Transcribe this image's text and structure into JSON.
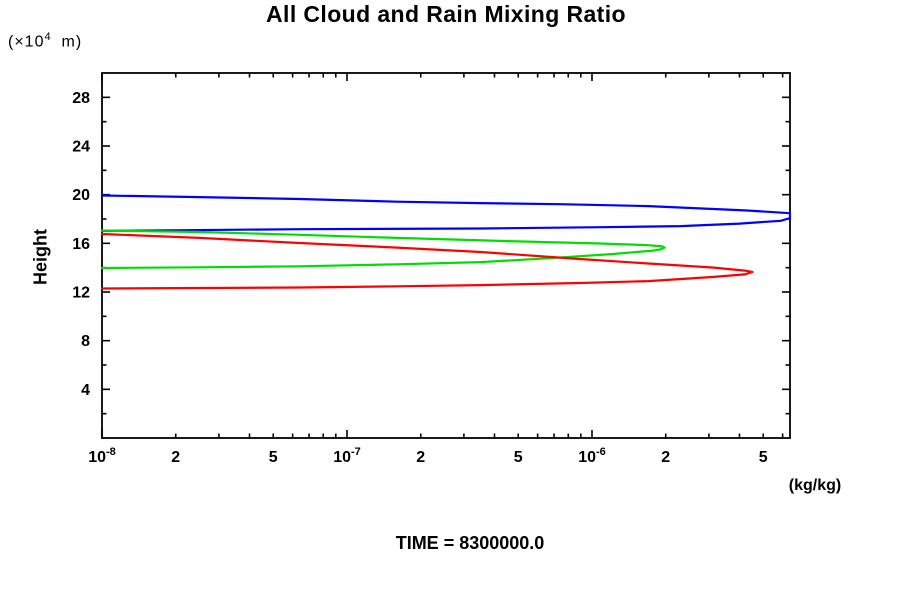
{
  "chart_data": {
    "type": "line",
    "title": "All Cloud and Rain Mixing Ratio",
    "time_label": "TIME = 8300000.0",
    "ylabel": "Height",
    "y_unit": {
      "prefix": "(×10",
      "sup": "4",
      "suffix": "  m)"
    },
    "xlabel_unit": "(kg/kg)",
    "x_scale": "log",
    "xlim": [
      1e-08,
      6.43e-06
    ],
    "ylim": [
      0,
      30
    ],
    "grid": false,
    "legend": "none",
    "frame_color": "#000000",
    "x_ticks": [
      {
        "v": 1e-08,
        "label": "10",
        "sup": "-8",
        "major": true
      },
      {
        "v": 2e-08,
        "label": "2",
        "major": false
      },
      {
        "v": 3e-08,
        "label": "",
        "major": false
      },
      {
        "v": 4e-08,
        "label": "",
        "major": false
      },
      {
        "v": 5e-08,
        "label": "5",
        "major": false
      },
      {
        "v": 6e-08,
        "label": "",
        "major": false
      },
      {
        "v": 7e-08,
        "label": "",
        "major": false
      },
      {
        "v": 8e-08,
        "label": "",
        "major": false
      },
      {
        "v": 9e-08,
        "label": "",
        "major": false
      },
      {
        "v": 1e-07,
        "label": "10",
        "sup": "-7",
        "major": true
      },
      {
        "v": 2e-07,
        "label": "2",
        "major": false
      },
      {
        "v": 3e-07,
        "label": "",
        "major": false
      },
      {
        "v": 4e-07,
        "label": "",
        "major": false
      },
      {
        "v": 5e-07,
        "label": "5",
        "major": false
      },
      {
        "v": 6e-07,
        "label": "",
        "major": false
      },
      {
        "v": 7e-07,
        "label": "",
        "major": false
      },
      {
        "v": 8e-07,
        "label": "",
        "major": false
      },
      {
        "v": 9e-07,
        "label": "",
        "major": false
      },
      {
        "v": 1e-06,
        "label": "10",
        "sup": "-6",
        "major": true
      },
      {
        "v": 2e-06,
        "label": "2",
        "major": false
      },
      {
        "v": 3e-06,
        "label": "",
        "major": false
      },
      {
        "v": 4e-06,
        "label": "",
        "major": false
      },
      {
        "v": 5e-06,
        "label": "5",
        "major": false
      },
      {
        "v": 6e-06,
        "label": "",
        "major": false
      }
    ],
    "y_ticks": [
      {
        "v": 2,
        "label": "",
        "major": false
      },
      {
        "v": 4,
        "label": "4",
        "major": true
      },
      {
        "v": 6,
        "label": "",
        "major": false
      },
      {
        "v": 8,
        "label": "8",
        "major": true
      },
      {
        "v": 10,
        "label": "",
        "major": false
      },
      {
        "v": 12,
        "label": "12",
        "major": true
      },
      {
        "v": 14,
        "label": "",
        "major": false
      },
      {
        "v": 16,
        "label": "16",
        "major": true
      },
      {
        "v": 18,
        "label": "",
        "major": false
      },
      {
        "v": 20,
        "label": "20",
        "major": true
      },
      {
        "v": 22,
        "label": "",
        "major": false
      },
      {
        "v": 24,
        "label": "24",
        "major": true
      },
      {
        "v": 26,
        "label": "",
        "major": false
      },
      {
        "v": 28,
        "label": "28",
        "major": true
      }
    ],
    "series": [
      {
        "name": "blue-profile",
        "color": "#0000ff",
        "points": [
          [
            1e-08,
            19.93
          ],
          [
            2.5e-08,
            19.8
          ],
          [
            6.4e-08,
            19.64
          ],
          [
            1.6e-07,
            19.42
          ],
          [
            3.5e-07,
            19.31
          ],
          [
            7.4e-07,
            19.22
          ],
          [
            1.7e-06,
            19.06
          ],
          [
            2.6e-06,
            18.9
          ],
          [
            4.3e-06,
            18.7
          ],
          [
            6.43e-06,
            18.48
          ],
          [
            6.43e-06,
            18.08
          ],
          [
            5.9e-06,
            17.85
          ],
          [
            4e-06,
            17.62
          ],
          [
            2.3e-06,
            17.42
          ],
          [
            1.1e-06,
            17.33
          ],
          [
            3.5e-07,
            17.22
          ],
          [
            6.4e-08,
            17.16
          ],
          [
            1e-08,
            17.02
          ]
        ]
      },
      {
        "name": "green-profile",
        "color": "#00dd00",
        "points": [
          [
            1e-08,
            17.05
          ],
          [
            2.5e-08,
            16.93
          ],
          [
            6.4e-08,
            16.7
          ],
          [
            1.6e-07,
            16.45
          ],
          [
            4.2e-07,
            16.2
          ],
          [
            1.08e-06,
            15.99
          ],
          [
            1.7e-06,
            15.85
          ],
          [
            1.93e-06,
            15.75
          ],
          [
            1.98e-06,
            15.65
          ],
          [
            1.9e-06,
            15.5
          ],
          [
            1.78e-06,
            15.4
          ],
          [
            1.22e-06,
            15.12
          ],
          [
            6.6e-07,
            14.77
          ],
          [
            3.5e-07,
            14.46
          ],
          [
            1.6e-07,
            14.28
          ],
          [
            6.4e-08,
            14.11
          ],
          [
            2.5e-08,
            14.03
          ],
          [
            1e-08,
            13.97
          ]
        ]
      },
      {
        "name": "red-profile",
        "color": "#ff0000",
        "points": [
          [
            1e-08,
            16.77
          ],
          [
            2.5e-08,
            16.45
          ],
          [
            6.4e-08,
            16.03
          ],
          [
            1.6e-07,
            15.65
          ],
          [
            3.5e-07,
            15.29
          ],
          [
            8.9e-07,
            14.71
          ],
          [
            1.7e-06,
            14.34
          ],
          [
            3.1e-06,
            14.01
          ],
          [
            4.2e-06,
            13.76
          ],
          [
            4.52e-06,
            13.64
          ],
          [
            4.2e-06,
            13.45
          ],
          [
            3.1e-06,
            13.23
          ],
          [
            1.7e-06,
            12.9
          ],
          [
            8.9e-07,
            12.74
          ],
          [
            3.5e-07,
            12.57
          ],
          [
            1.6e-07,
            12.47
          ],
          [
            6.4e-08,
            12.37
          ],
          [
            2.5e-08,
            12.33
          ],
          [
            1e-08,
            12.29
          ]
        ]
      }
    ]
  }
}
